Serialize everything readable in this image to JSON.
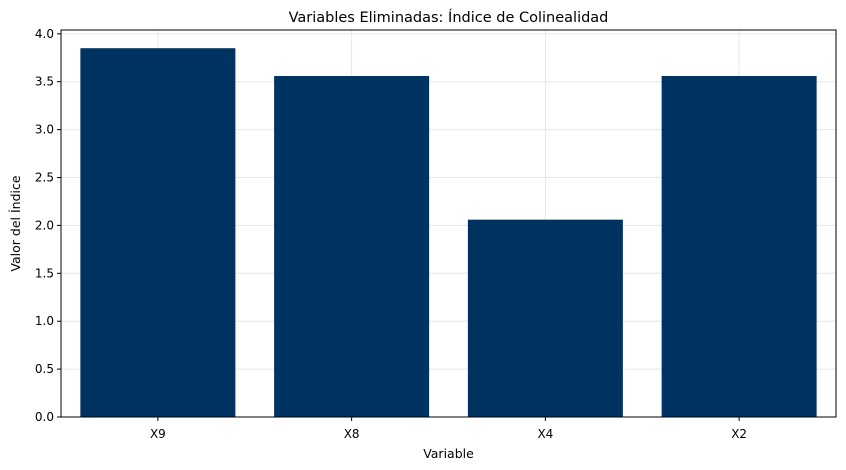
{
  "chart_data": {
    "type": "bar",
    "title": "Variables Eliminadas: Índice de Colinealidad",
    "xlabel": "Variable",
    "ylabel": "Valor del Índice",
    "categories": [
      "X9",
      "X8",
      "X4",
      "X2"
    ],
    "values": [
      3.85,
      3.56,
      2.06,
      3.56
    ],
    "ylim": [
      0,
      4.04
    ],
    "yticks": [
      "0.0",
      "0.5",
      "1.0",
      "1.5",
      "2.0",
      "2.5",
      "3.0",
      "3.5",
      "4.0"
    ],
    "grid": true,
    "colors": {
      "bar": "#003262",
      "grid": "#e6e6e6",
      "axis": "#000000"
    }
  }
}
